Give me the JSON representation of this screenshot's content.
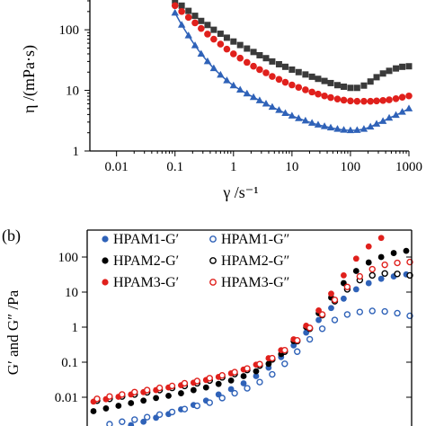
{
  "chart_data": [
    {
      "type": "scatter",
      "panel_label": "",
      "scale": {
        "x": "log",
        "y": "log"
      },
      "xlim": [
        0.003,
        1000
      ],
      "ylim": [
        1,
        300
      ],
      "xticks": [
        "0.01",
        "0.1",
        "1",
        "10",
        "100",
        "1000"
      ],
      "yticks": [
        "1",
        "10",
        "100"
      ],
      "ylabel": "η /(mPa·s)",
      "xlabel": "γ /s⁻¹",
      "series": [
        {
          "marker": "square",
          "color": "#3a3a3a",
          "x": [
            0.1,
            0.13,
            0.17,
            0.22,
            0.28,
            0.36,
            0.46,
            0.6,
            0.77,
            1,
            1.3,
            1.7,
            2.2,
            2.8,
            3.6,
            4.6,
            6,
            7.7,
            10,
            13,
            17,
            22,
            28,
            36,
            46,
            60,
            77,
            100,
            130,
            170,
            220,
            280,
            360,
            460,
            600,
            770,
            1000
          ],
          "y": [
            300,
            250,
            205,
            170,
            140,
            120,
            100,
            86,
            74,
            64,
            56,
            49,
            43,
            38,
            34,
            30,
            27,
            24.5,
            22,
            20,
            18.3,
            16.8,
            15.5,
            14.3,
            13.2,
            12.2,
            11.5,
            11,
            11,
            12,
            14,
            16.5,
            19,
            21,
            23,
            24.5,
            25
          ]
        },
        {
          "marker": "circle",
          "color": "#e0201c",
          "x": [
            0.1,
            0.13,
            0.17,
            0.22,
            0.28,
            0.36,
            0.46,
            0.6,
            0.77,
            1,
            1.3,
            1.7,
            2.2,
            2.8,
            3.6,
            4.6,
            6,
            7.7,
            10,
            13,
            17,
            22,
            28,
            36,
            46,
            60,
            77,
            100,
            130,
            170,
            220,
            280,
            360,
            460,
            600,
            770,
            1000
          ],
          "y": [
            250,
            200,
            160,
            130,
            105,
            85,
            70,
            58,
            48,
            40,
            34,
            29,
            25,
            22,
            19.5,
            17,
            15.2,
            13.6,
            12.3,
            11.2,
            10.2,
            9.4,
            8.7,
            8.1,
            7.6,
            7.2,
            6.9,
            6.7,
            6.6,
            6.6,
            6.6,
            6.7,
            6.8,
            7,
            7.3,
            7.7,
            8.1
          ]
        },
        {
          "marker": "triangle",
          "color": "#2f62b8",
          "connected": true,
          "x": [
            0.1,
            0.13,
            0.17,
            0.22,
            0.28,
            0.36,
            0.46,
            0.6,
            0.77,
            1,
            1.3,
            1.7,
            2.2,
            2.8,
            3.6,
            4.6,
            6,
            7.7,
            10,
            13,
            17,
            22,
            28,
            36,
            46,
            60,
            77,
            100,
            130,
            170,
            220,
            280,
            360,
            460,
            600,
            770,
            1000
          ],
          "y": [
            190,
            120,
            80,
            55,
            40,
            30,
            23,
            18,
            14.5,
            12,
            10.2,
            8.8,
            7.7,
            6.8,
            6,
            5.3,
            4.7,
            4.2,
            3.8,
            3.45,
            3.15,
            2.9,
            2.7,
            2.55,
            2.42,
            2.3,
            2.22,
            2.18,
            2.2,
            2.3,
            2.5,
            2.8,
            3.1,
            3.5,
            3.9,
            4.4,
            5
          ]
        }
      ]
    },
    {
      "type": "scatter",
      "panel_label": "(b)",
      "scale": {
        "x": "log",
        "y": "log"
      },
      "ylim": [
        0.0002,
        700
      ],
      "yticks": [
        "0.01",
        "0.1",
        "1",
        "10",
        "100"
      ],
      "ylabel": "G′  and G″ /Pa",
      "x_index": [
        0,
        1,
        2,
        3,
        4,
        5,
        6,
        7,
        8,
        9,
        10,
        11,
        12,
        13,
        14,
        15,
        16,
        17,
        18,
        19,
        20,
        21,
        22,
        23,
        24,
        25
      ],
      "legend": {
        "placement": "top-left",
        "entries": [
          [
            "HPAM1-G′",
            "HPAM1-G″"
          ],
          [
            "HPAM2-G′",
            "HPAM2-G″"
          ],
          [
            "HPAM3-G′",
            "HPAM3-G″"
          ]
        ]
      },
      "series": [
        {
          "name": "HPAM1-G′",
          "color": "#2f62b8",
          "fill": true,
          "y": [
            0.0009,
            0.0011,
            0.0013,
            0.0016,
            0.002,
            0.0026,
            0.0033,
            0.0045,
            0.006,
            0.008,
            0.012,
            0.017,
            0.025,
            0.04,
            0.07,
            0.14,
            0.3,
            0.7,
            1.6,
            3.5,
            6.5,
            12,
            18,
            24,
            28,
            32
          ]
        },
        {
          "name": "HPAM1-G″",
          "color": "#2f62b8",
          "fill": false,
          "y": [
            0.0015,
            0.0017,
            0.002,
            0.0023,
            0.0027,
            0.0032,
            0.0038,
            0.0046,
            0.0057,
            0.007,
            0.0095,
            0.013,
            0.018,
            0.027,
            0.045,
            0.09,
            0.2,
            0.45,
            0.9,
            1.6,
            2.3,
            2.7,
            2.9,
            2.8,
            2.5,
            2.1
          ]
        },
        {
          "name": "HPAM2-G′",
          "color": "#000000",
          "fill": true,
          "y": [
            0.004,
            0.0048,
            0.0057,
            0.0068,
            0.008,
            0.0095,
            0.011,
            0.013,
            0.016,
            0.019,
            0.024,
            0.03,
            0.04,
            0.055,
            0.09,
            0.17,
            0.4,
            1,
            2.5,
            7,
            18,
            40,
            70,
            100,
            130,
            150
          ]
        },
        {
          "name": "HPAM2-G″",
          "color": "#000000",
          "fill": false,
          "y": [
            0.008,
            0.009,
            0.0105,
            0.012,
            0.0138,
            0.016,
            0.0185,
            0.021,
            0.025,
            0.03,
            0.037,
            0.046,
            0.06,
            0.08,
            0.12,
            0.2,
            0.4,
            0.9,
            2.2,
            5.5,
            12,
            22,
            30,
            34,
            33,
            30
          ]
        },
        {
          "name": "HPAM3-G′",
          "color": "#e0201c",
          "fill": true,
          "y": [
            0.0075,
            0.0088,
            0.0103,
            0.012,
            0.014,
            0.016,
            0.019,
            0.022,
            0.026,
            0.031,
            0.038,
            0.048,
            0.062,
            0.085,
            0.13,
            0.22,
            0.45,
            1.1,
            3,
            9,
            30,
            90,
            200,
            350,
            500,
            600
          ]
        },
        {
          "name": "HPAM3-G″",
          "color": "#e0201c",
          "fill": false,
          "y": [
            0.009,
            0.0105,
            0.012,
            0.014,
            0.016,
            0.0185,
            0.021,
            0.025,
            0.029,
            0.035,
            0.042,
            0.052,
            0.066,
            0.088,
            0.13,
            0.22,
            0.42,
            0.95,
            2.3,
            6,
            14,
            28,
            45,
            60,
            68,
            72
          ]
        }
      ]
    }
  ]
}
